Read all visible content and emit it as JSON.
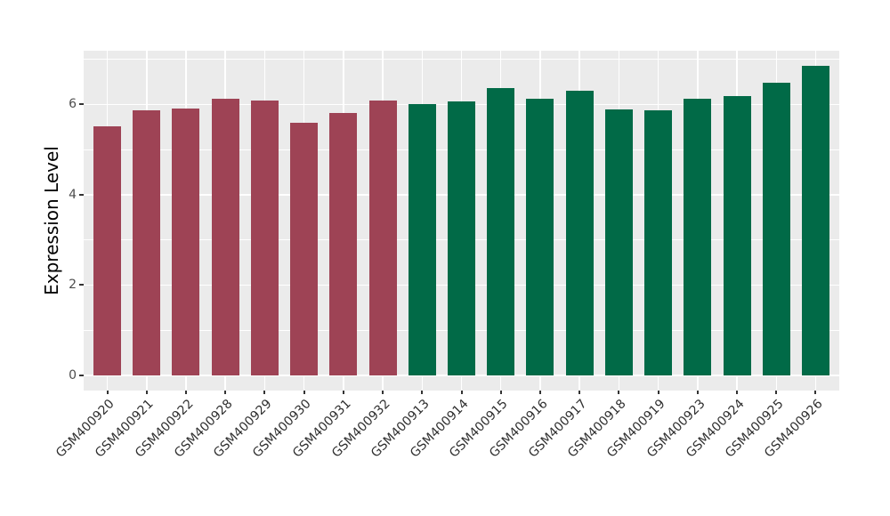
{
  "figure": {
    "background": "#FFFFFF",
    "panel_background": "#EBEBEB",
    "grid_color": "#FFFFFF",
    "axis_text_color": "#4D4D4D",
    "x_axis_text_color": "#303030",
    "axis_title_color": "#000000",
    "tick_mark_color": "#333333"
  },
  "chart_data": {
    "type": "bar",
    "title": "",
    "xlabel": "",
    "ylabel": "Expression Level",
    "y_ticks": [
      0,
      2,
      4,
      6
    ],
    "y_minor_ticks": [
      1,
      3,
      5,
      7
    ],
    "y_axis_range": [
      -0.34,
      7.19
    ],
    "grid": "on",
    "legend_position": "none",
    "categories": [
      "GSM400920",
      "GSM400921",
      "GSM400922",
      "GSM400928",
      "GSM400929",
      "GSM400930",
      "GSM400931",
      "GSM400932",
      "GSM400913",
      "GSM400914",
      "GSM400915",
      "GSM400916",
      "GSM400917",
      "GSM400918",
      "GSM400919",
      "GSM400923",
      "GSM400924",
      "GSM400925",
      "GSM400926"
    ],
    "values": [
      5.52,
      5.86,
      5.9,
      6.13,
      6.08,
      5.59,
      5.81,
      6.09,
      6.01,
      6.07,
      6.36,
      6.13,
      6.31,
      5.89,
      5.87,
      6.13,
      6.19,
      6.49,
      6.86
    ],
    "bar_groups": [
      "maroon",
      "maroon",
      "maroon",
      "maroon",
      "maroon",
      "maroon",
      "maroon",
      "maroon",
      "green",
      "green",
      "green",
      "green",
      "green",
      "green",
      "green",
      "green",
      "green",
      "green",
      "green"
    ],
    "group_colors": {
      "maroon": "#9E4355",
      "green": "#016A47"
    },
    "bar_width_fraction": 0.7
  }
}
